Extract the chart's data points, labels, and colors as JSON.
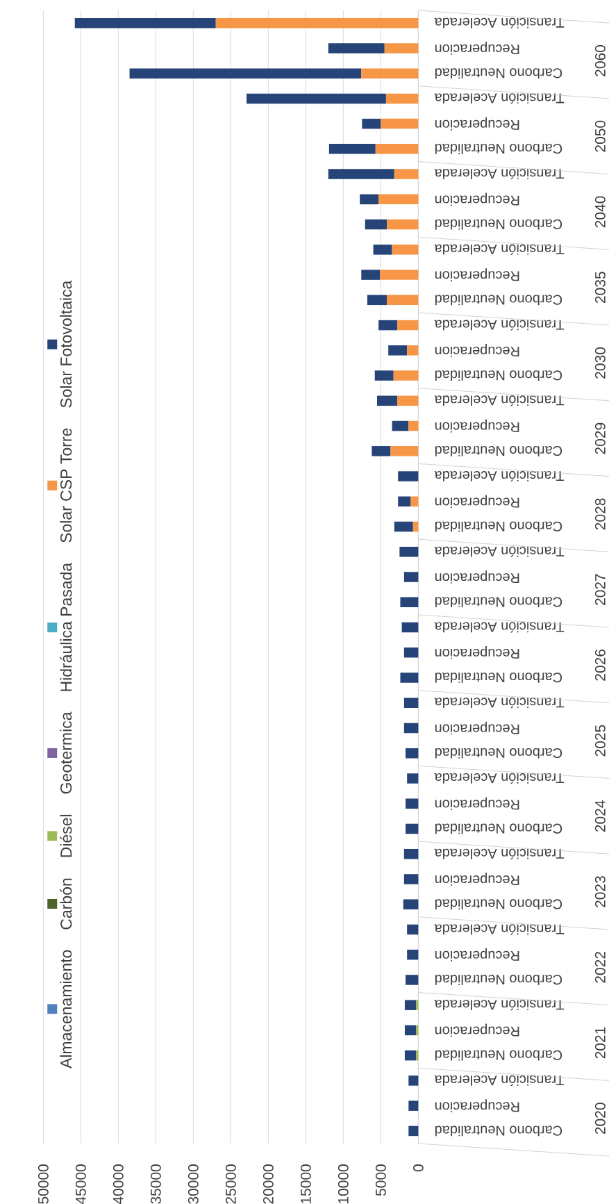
{
  "chart_data": {
    "type": "bar",
    "stacked": true,
    "orientation": "horizontal",
    "categories": [
      "Transición Acelerada",
      "Recuperacion",
      "Carbono Neutralidad",
      "Transición Acelerada",
      "Recuperacion",
      "Carbono Neutralidad",
      "Transición Acelerada",
      "Recuperacion",
      "Carbono Neutralidad",
      "Transición Acelerada",
      "Recuperacion",
      "Carbono Neutralidad",
      "Transición Acelerada",
      "Recuperacion",
      "Carbono Neutralidad",
      "Transición Acelerada",
      "Recuperacion",
      "Carbono Neutralidad",
      "Transición Acelerada",
      "Recuperacion",
      "Carbono Neutralidad",
      "Transición Acelerada",
      "Recuperacion",
      "Carbono Neutralidad",
      "Transición Acelerada",
      "Recuperacion",
      "Carbono Neutralidad",
      "Transición Acelerada",
      "Recuperacion",
      "Carbono Neutralidad",
      "Transición Acelerada",
      "Recuperacion",
      "Carbono Neutralidad",
      "Transición Acelerada",
      "Recuperacion",
      "Carbono Neutralidad",
      "Transición Acelerada",
      "Recuperacion",
      "Carbono Neutralidad",
      "Transición Acelerada",
      "Recuperacion",
      "Carbono Neutralidad",
      "Transición Acelerada",
      "Recuperacion",
      "Carbono Neutralidad"
    ],
    "annotations": [
      "2060",
      "2050",
      "2040",
      "2035",
      "2030",
      "2029",
      "2028",
      "2027",
      "2026",
      "2025",
      "2024",
      "2023",
      "2022",
      "2021",
      "2020"
    ],
    "series": [
      {
        "name": "Almacenamiento",
        "color": "#4f81bd",
        "values": [
          0,
          0,
          0,
          0,
          0,
          0,
          0,
          0,
          0,
          0,
          0,
          0,
          0,
          0,
          0,
          0,
          0,
          0,
          0,
          0,
          0,
          0,
          0,
          0,
          0,
          0,
          0,
          0,
          0,
          0,
          0,
          0,
          0,
          0,
          0,
          0,
          0,
          0,
          0,
          0,
          0,
          0,
          0,
          0,
          0
        ]
      },
      {
        "name": "Carbón",
        "color": "#4f6228",
        "values": [
          0,
          0,
          0,
          0,
          0,
          0,
          0,
          0,
          0,
          0,
          0,
          0,
          0,
          0,
          0,
          0,
          0,
          0,
          0,
          0,
          0,
          0,
          0,
          0,
          0,
          0,
          0,
          0,
          0,
          0,
          0,
          0,
          0,
          0,
          0,
          0,
          0,
          0,
          0,
          0,
          0,
          0,
          0,
          0,
          0
        ]
      },
      {
        "name": "Diésel",
        "color": "#9bbb59",
        "values": [
          0,
          0,
          0,
          0,
          0,
          0,
          0,
          0,
          0,
          0,
          0,
          0,
          0,
          0,
          0,
          0,
          0,
          0,
          0,
          0,
          0,
          0,
          0,
          0,
          0,
          0,
          0,
          0,
          0,
          0,
          0,
          0,
          0,
          0,
          0,
          0,
          0,
          0,
          0,
          300,
          300,
          300,
          0,
          0,
          0
        ]
      },
      {
        "name": "Geotermica",
        "color": "#8064a2",
        "values": [
          0,
          0,
          0,
          0,
          0,
          0,
          0,
          0,
          0,
          0,
          0,
          0,
          0,
          0,
          0,
          0,
          0,
          0,
          0,
          0,
          0,
          0,
          0,
          0,
          0,
          0,
          0,
          0,
          0,
          0,
          0,
          0,
          0,
          0,
          0,
          0,
          0,
          0,
          0,
          0,
          0,
          0,
          0,
          0,
          0
        ]
      },
      {
        "name": "Hidráulica Pasada",
        "color": "#4bacc6",
        "values": [
          0,
          0,
          0,
          0,
          0,
          0,
          0,
          0,
          0,
          0,
          0,
          0,
          0,
          0,
          0,
          0,
          0,
          0,
          0,
          0,
          0,
          0,
          0,
          0,
          0,
          0,
          0,
          0,
          0,
          0,
          0,
          0,
          0,
          0,
          0,
          0,
          0,
          0,
          0,
          0,
          0,
          0,
          0,
          0,
          0
        ]
      },
      {
        "name": "Solar CSP Torre",
        "color": "#f79646",
        "values": [
          27000,
          4500,
          7600,
          4300,
          5000,
          5700,
          3200,
          5300,
          4200,
          3500,
          5100,
          4200,
          2800,
          1500,
          3300,
          2800,
          1300,
          3700,
          0,
          1000,
          700,
          0,
          0,
          0,
          0,
          0,
          0,
          0,
          0,
          0,
          0,
          0,
          0,
          0,
          0,
          0,
          0,
          0,
          0,
          0,
          0,
          0,
          0,
          0,
          0
        ]
      },
      {
        "name": "Solar Fotovoltaica",
        "color": "#264478",
        "values": [
          18800,
          7500,
          30900,
          18600,
          2500,
          6200,
          8800,
          2500,
          2900,
          2500,
          2500,
          2600,
          2500,
          2500,
          2500,
          2700,
          2200,
          2500,
          2700,
          1700,
          2500,
          2500,
          1900,
          2400,
          2200,
          1900,
          2400,
          1900,
          1900,
          1700,
          1500,
          1700,
          1700,
          1900,
          1900,
          2000,
          1500,
          1500,
          1700,
          1500,
          1500,
          1500,
          1300,
          1300,
          1300
        ]
      }
    ],
    "xlim": [
      50000,
      0
    ],
    "xticks": [
      0,
      5000,
      10000,
      15000,
      20000,
      25000,
      30000,
      35000,
      40000,
      45000,
      50000
    ],
    "grid": "x",
    "legend": "left"
  }
}
